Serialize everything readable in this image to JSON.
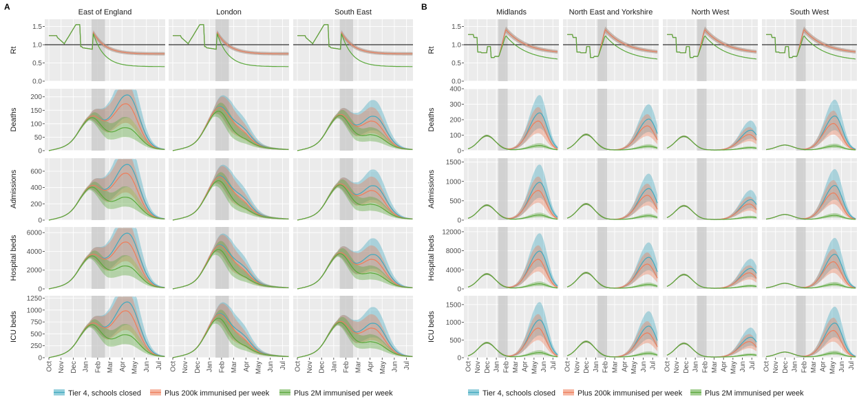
{
  "panel_labels": [
    "A",
    "B"
  ],
  "colors": {
    "tier4": "#3fa9bf",
    "plus200k": "#ee7d5a",
    "plus2m": "#5aa83a",
    "panel_bg": "#ebebeb",
    "grid": "#ffffff",
    "shade": "#c8c8c8"
  },
  "legend": [
    {
      "key": "tier4",
      "label": "Tier 4, schools closed"
    },
    {
      "key": "plus200k",
      "label": "Plus 200k immunised per week"
    },
    {
      "key": "plus2m",
      "label": "Plus 2M immunised per week"
    }
  ],
  "x_ticks": [
    "Oct",
    "Nov",
    "Dec",
    "Jan",
    "Feb",
    "Mar",
    "Apr",
    "May",
    "Jun",
    "Jul"
  ],
  "row_labels": [
    "Rt",
    "Deaths",
    "Admissions",
    "Hospital beds",
    "ICU beds"
  ],
  "chart_data": [
    {
      "panel": "A",
      "type": "line",
      "regions": [
        "East of England",
        "London",
        "South East"
      ],
      "x": [
        "Oct",
        "Nov",
        "Dec",
        "Jan",
        "Feb",
        "Mar",
        "Apr",
        "May",
        "Jun",
        "Jul"
      ],
      "shaded_period": [
        "mid-Jan",
        "mid-Feb"
      ],
      "rows": [
        {
          "label": "Rt",
          "ylim": [
            0,
            1.7
          ],
          "ticks": [
            "0.0",
            "0.5",
            "1.0",
            "1.5"
          ],
          "reference_line": 1.0
        },
        {
          "label": "Deaths",
          "ylim": [
            0,
            230
          ],
          "ticks": [
            "0",
            "50",
            "100",
            "150",
            "200"
          ]
        },
        {
          "label": "Admissions",
          "ylim": [
            0,
            760
          ],
          "ticks": [
            "0",
            "200",
            "400",
            "600"
          ]
        },
        {
          "label": "Hospital beds",
          "ylim": [
            0,
            6600
          ],
          "ticks": [
            "0",
            "2000",
            "4000",
            "6000"
          ]
        },
        {
          "label": "ICU beds",
          "ylim": [
            0,
            1300
          ],
          "ticks": [
            "0",
            "250",
            "500",
            "750",
            "1000",
            "1250"
          ]
        }
      ]
    },
    {
      "panel": "B",
      "type": "line",
      "regions": [
        "Midlands",
        "North East and Yorkshire",
        "North West",
        "South West"
      ],
      "x": [
        "Oct",
        "Nov",
        "Dec",
        "Jan",
        "Feb",
        "Mar",
        "Apr",
        "May",
        "Jun",
        "Jul"
      ],
      "shaded_period": [
        "early-Jan",
        "early-Feb"
      ],
      "rows": [
        {
          "label": "Rt",
          "ylim": [
            0,
            1.7
          ],
          "ticks": [
            "0.0",
            "0.5",
            "1.0",
            "1.5"
          ],
          "reference_line": 1.0
        },
        {
          "label": "Deaths",
          "ylim": [
            0,
            400
          ],
          "ticks": [
            "0",
            "100",
            "200",
            "300",
            "400"
          ]
        },
        {
          "label": "Admissions",
          "ylim": [
            0,
            1600
          ],
          "ticks": [
            "0",
            "500",
            "1000",
            "1500"
          ]
        },
        {
          "label": "Hospital beds",
          "ylim": [
            0,
            13000
          ],
          "ticks": [
            "0",
            "4000",
            "8000",
            "12000"
          ]
        },
        {
          "label": "ICU beds",
          "ylim": [
            0,
            1750
          ],
          "ticks": [
            "0",
            "500",
            "1000",
            "1500"
          ]
        }
      ]
    }
  ]
}
